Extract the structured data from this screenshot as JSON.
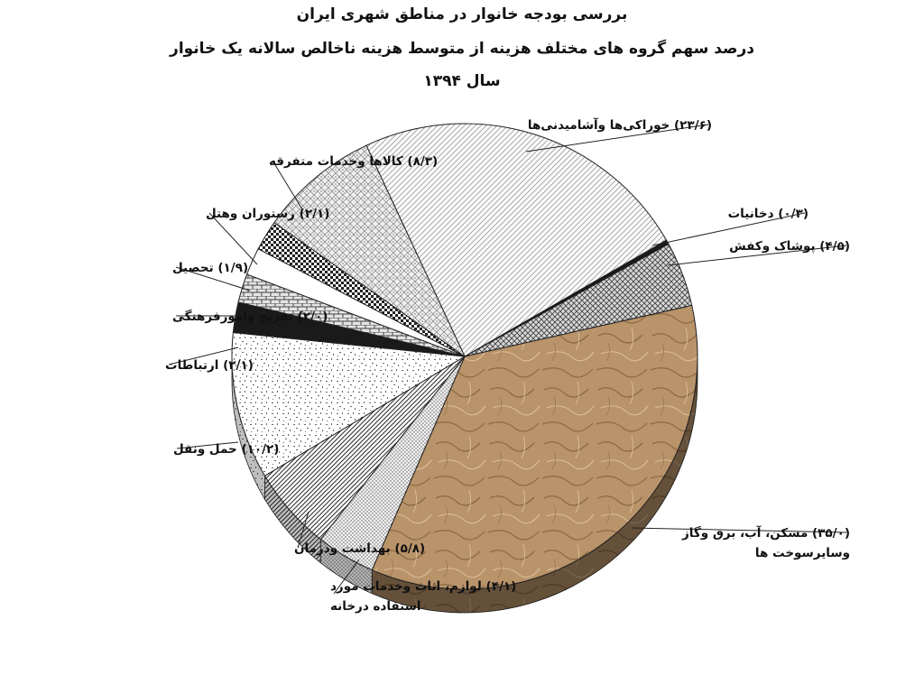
{
  "titles": {
    "line1": "بررسی بودجه خانوار در مناطق شهری ایران",
    "line2": "درصد سهم گروه های مختلف هزینه از متوسط هزینه ناخالص سالانه یک خانوار",
    "line3": "سال ۱۳۹۴"
  },
  "chart_data": {
    "type": "pie",
    "title": "بررسی بودجه خانوار در مناطق شهری ایران",
    "subtitle": "درصد سهم گروه های مختلف هزینه از متوسط هزینه ناخالص سالانه یک خانوار",
    "year_label": "سال ۱۳۹۴",
    "slices": [
      {
        "label": "خوراکی‌ها وآشامیدنی‌ها",
        "value": 23.6,
        "value_text": "(۲۳/۶)",
        "pattern": "diag-light"
      },
      {
        "label": "دخانیات",
        "value": 0.3,
        "value_text": "(۰/۳)",
        "pattern": "black"
      },
      {
        "label": "پوشاک وکفش",
        "value": 4.5,
        "value_text": "(۴/۵)",
        "pattern": "cross"
      },
      {
        "label": "مسکن، آب، برق وگاز وسایرسوخت ها",
        "label_line1": "مسکن، آب، برق وگاز",
        "label_line2": "وسایرسوخت ها",
        "value": 35.0,
        "value_text": "(۳۵/۰)",
        "pattern": "paper"
      },
      {
        "label": "لوازم، اثاث وخدمات مورد استفاده درخانه",
        "label_line1": "لوازم، اثاث وخدمات مورد",
        "label_line2": "استفاده درخانه",
        "value": 4.1,
        "value_text": "(۴/۱)",
        "pattern": "dots-fine"
      },
      {
        "label": "بهداشت ودرمان",
        "value": 5.8,
        "value_text": "(۵/۸)",
        "pattern": "diag-dense"
      },
      {
        "label": "حمل ونقل",
        "value": 10.2,
        "value_text": "(۱۰/۲)",
        "pattern": "confetti"
      },
      {
        "label": "ارتباطات",
        "value": 2.1,
        "value_text": "(۲/۱)",
        "pattern": "black"
      },
      {
        "label": "تفریح وامورفرهنگی",
        "value": 2.0,
        "value_text": "(۲/۰)",
        "pattern": "brick"
      },
      {
        "label": "تحصیل",
        "value": 1.9,
        "value_text": "(۱/۹)",
        "pattern": "white"
      },
      {
        "label": "رستوران وهتل",
        "value": 2.1,
        "value_text": "(۲/۱)",
        "pattern": "checker"
      },
      {
        "label": "کالاها وخدمات متفرقه",
        "value": 8.3,
        "value_text": "(۸/۳)",
        "pattern": "weave"
      }
    ]
  }
}
